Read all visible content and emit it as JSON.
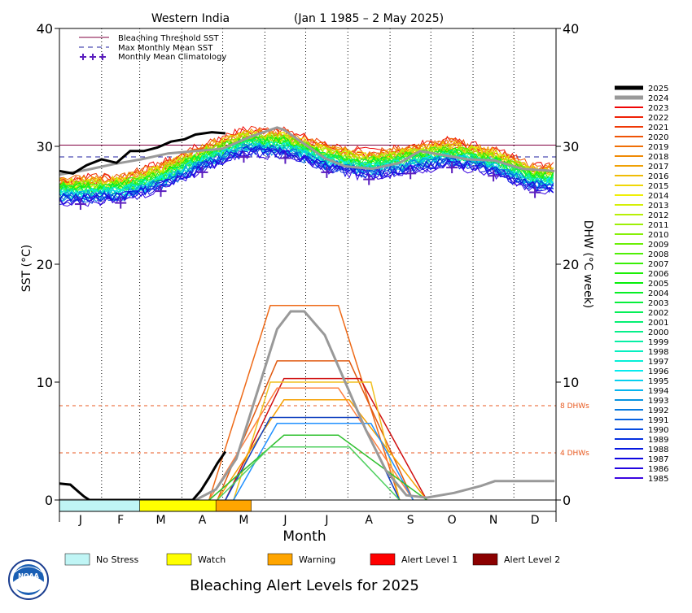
{
  "chart_data": {
    "type": "line",
    "title": "Western India",
    "date_range": "(Jan 1 1985 – 2 May 2025)",
    "ylabel_left": "SST (°C)",
    "ylabel_right": "DHW (°C week)",
    "xlabel": "Month",
    "ylim": [
      0,
      40
    ],
    "yticks": [
      0,
      10,
      20,
      30,
      40
    ],
    "months": [
      "J",
      "F",
      "M",
      "A",
      "M",
      "J",
      "J",
      "A",
      "S",
      "O",
      "N",
      "D"
    ],
    "grid": "dotted vertical at month boundaries",
    "reference_lines": {
      "bleaching_threshold_sst": 30.1,
      "max_monthly_mean_sst": 29.1,
      "dhw_thresholds": [
        {
          "value": 8,
          "label": "8 DHWs"
        },
        {
          "value": 4,
          "label": "4 DHWs"
        }
      ]
    },
    "legend_top": [
      {
        "label": "Bleaching Threshold SST",
        "style": "solid",
        "color": "#800040"
      },
      {
        "label": "Max Monthly Mean SST",
        "style": "dashed",
        "color": "#2020a0"
      },
      {
        "label": "Monthly Mean Climatology",
        "style": "plus",
        "color": "#5b1fbf"
      }
    ],
    "climatology": [
      {
        "month": "Jan",
        "sst": 25.1
      },
      {
        "month": "Feb",
        "sst": 25.2
      },
      {
        "month": "Mar",
        "sst": 26.2
      },
      {
        "month": "Apr",
        "sst": 27.8
      },
      {
        "month": "May",
        "sst": 29.1
      },
      {
        "month": "Jun",
        "sst": 29.0
      },
      {
        "month": "Jul",
        "sst": 27.8
      },
      {
        "month": "Aug",
        "sst": 27.2
      },
      {
        "month": "Sep",
        "sst": 27.7
      },
      {
        "month": "Oct",
        "sst": 28.2
      },
      {
        "month": "Nov",
        "sst": 27.5
      },
      {
        "month": "Dec",
        "sst": 26.1
      }
    ],
    "series_2025": {
      "name": "2025",
      "color": "#000000",
      "sst": [
        [
          0,
          27.9
        ],
        [
          10,
          27.7
        ],
        [
          20,
          28.4
        ],
        [
          31,
          28.9
        ],
        [
          42,
          28.6
        ],
        [
          52,
          29.6
        ],
        [
          62,
          29.6
        ],
        [
          72,
          29.9
        ],
        [
          82,
          30.4
        ],
        [
          92,
          30.6
        ],
        [
          100,
          31.0
        ],
        [
          112,
          31.2
        ],
        [
          122,
          31.1
        ]
      ],
      "dhw": [
        [
          0,
          1.4
        ],
        [
          8,
          1.3
        ],
        [
          14,
          0.7
        ],
        [
          18,
          0.3
        ],
        [
          22,
          0.0
        ],
        [
          98,
          0.0
        ],
        [
          104,
          0.8
        ],
        [
          110,
          1.9
        ],
        [
          116,
          3.1
        ],
        [
          122,
          4.1
        ]
      ]
    },
    "series_2024": {
      "name": "2024",
      "color": "#999999",
      "sst": [
        [
          0,
          27.6
        ],
        [
          20,
          28.0
        ],
        [
          40,
          28.5
        ],
        [
          60,
          28.9
        ],
        [
          80,
          29.4
        ],
        [
          100,
          29.6
        ],
        [
          120,
          29.8
        ],
        [
          140,
          30.8
        ],
        [
          160,
          31.6
        ],
        [
          165,
          31.4
        ],
        [
          175,
          30.6
        ],
        [
          195,
          29.0
        ],
        [
          210,
          28.3
        ],
        [
          230,
          28.1
        ],
        [
          250,
          28.6
        ],
        [
          265,
          29.6
        ],
        [
          280,
          29.3
        ],
        [
          300,
          28.9
        ],
        [
          320,
          28.8
        ],
        [
          340,
          28.1
        ],
        [
          364,
          27.9
        ]
      ],
      "dhw": [
        [
          0,
          0
        ],
        [
          100,
          0
        ],
        [
          115,
          0.9
        ],
        [
          130,
          3.5
        ],
        [
          145,
          9.0
        ],
        [
          160,
          14.5
        ],
        [
          170,
          16.0
        ],
        [
          180,
          16.0
        ],
        [
          195,
          14.0
        ],
        [
          210,
          10.0
        ],
        [
          225,
          6.0
        ],
        [
          240,
          2.5
        ],
        [
          255,
          0.4
        ],
        [
          270,
          0.2
        ],
        [
          290,
          0.6
        ],
        [
          310,
          1.2
        ],
        [
          320,
          1.6
        ],
        [
          364,
          1.6
        ]
      ]
    },
    "dhw_other_peaks": [
      {
        "year": "2020",
        "peak": 16.5,
        "color": "#ee6a18"
      },
      {
        "year": "2010",
        "peak": 11.8,
        "color": "#e05a10"
      },
      {
        "year": "2016",
        "peak": 10.3,
        "color": "#d01010"
      },
      {
        "year": "1998",
        "peak": 10.0,
        "color": "#f0c020"
      },
      {
        "year": "2019",
        "peak": 9.5,
        "color": "#ff8040"
      },
      {
        "year": "2017",
        "peak": 8.5,
        "color": "#f5a000"
      },
      {
        "year": "1990",
        "peak": 7.0,
        "color": "#1040c0"
      },
      {
        "year": "2007",
        "peak": 6.5,
        "color": "#2090ff"
      },
      {
        "year": "2014",
        "peak": 5.5,
        "color": "#30c030"
      },
      {
        "year": "2005",
        "peak": 4.5,
        "color": "#50d060"
      }
    ],
    "alert_bar_2025": [
      {
        "start_day": 0,
        "end_day": 59,
        "level": "No Stress",
        "color": "#c0f5f5"
      },
      {
        "start_day": 59,
        "end_day": 115,
        "level": "Watch",
        "color": "#ffff00"
      },
      {
        "start_day": 115,
        "end_day": 141,
        "level": "Warning",
        "color": "#ffa500"
      }
    ],
    "years": [
      "2025",
      "2024",
      "2023",
      "2022",
      "2021",
      "2020",
      "2019",
      "2018",
      "2017",
      "2016",
      "2015",
      "2014",
      "2013",
      "2012",
      "2011",
      "2010",
      "2009",
      "2008",
      "2007",
      "2006",
      "2005",
      "2004",
      "2003",
      "2002",
      "2001",
      "2000",
      "1999",
      "1998",
      "1997",
      "1996",
      "1995",
      "1994",
      "1993",
      "1992",
      "1991",
      "1990",
      "1989",
      "1988",
      "1987",
      "1986",
      "1985"
    ]
  },
  "alert_legend": [
    {
      "label": "No Stress",
      "color": "#c0f5f5"
    },
    {
      "label": "Watch",
      "color": "#ffff00"
    },
    {
      "label": "Warning",
      "color": "#ffa500"
    },
    {
      "label": "Alert Level 1",
      "color": "#ff0000"
    },
    {
      "label": "Alert Level 2",
      "color": "#8b0000"
    }
  ],
  "footer_title": "Bleaching Alert Levels for 2025",
  "logo_text": "NOAA",
  "colors": {
    "threshold": "#800040",
    "mmm": "#2020a0",
    "climatology": "#5b1fbf",
    "dhw_guide": "#e85a20"
  }
}
